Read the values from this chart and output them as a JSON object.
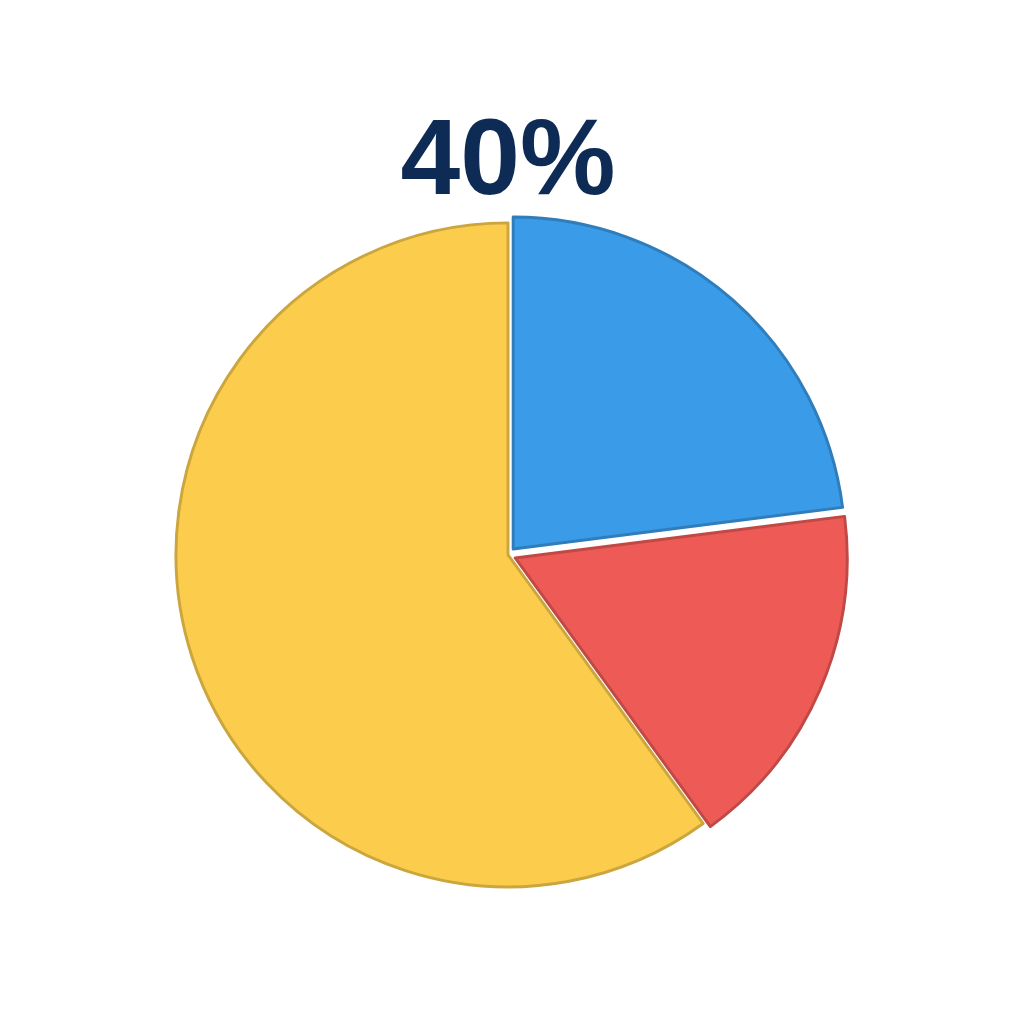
{
  "chart_data": {
    "type": "pie",
    "title": "40%",
    "categories": [
      null,
      null,
      null
    ],
    "values": [
      23,
      17,
      60
    ],
    "colors": [
      "#3a9be8",
      "#ee5a55",
      "#fccd4d"
    ]
  }
}
